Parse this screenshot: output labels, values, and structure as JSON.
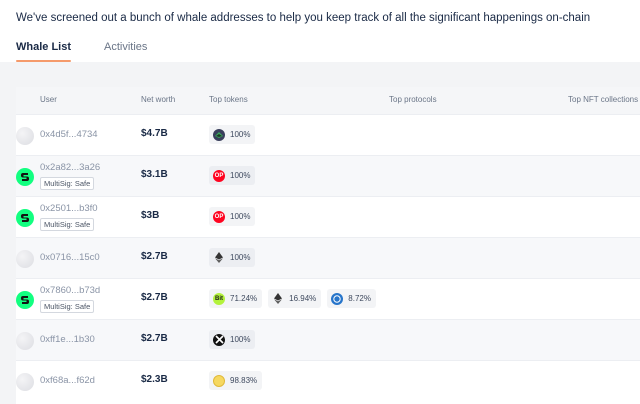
{
  "intro": "We've screened out a bunch of whale addresses to help you keep track of all the significant happenings on-chain",
  "tabs": [
    {
      "label": "Whale List",
      "active": true
    },
    {
      "label": "Activities",
      "active": false
    }
  ],
  "columns": {
    "user": "User",
    "net_worth": "Net worth",
    "top_tokens": "Top tokens",
    "top_protocols": "Top protocols",
    "top_nft": "Top NFT collections"
  },
  "rows": [
    {
      "address": "0x4d5f...4734",
      "badge": "",
      "avatar": "plain",
      "net_worth": "$4.7B",
      "tokens": [
        {
          "icon": "steth-icon",
          "pct": "100%"
        }
      ]
    },
    {
      "address": "0x2a82...3a26",
      "badge": "MultiSig: Safe",
      "avatar": "safe",
      "net_worth": "$3.1B",
      "tokens": [
        {
          "icon": "op-token-icon",
          "pct": "100%"
        }
      ]
    },
    {
      "address": "0x2501...b3f0",
      "badge": "MultiSig: Safe",
      "avatar": "safe",
      "net_worth": "$3B",
      "tokens": [
        {
          "icon": "op-token-icon",
          "pct": "100%"
        }
      ]
    },
    {
      "address": "0x0716...15c0",
      "badge": "",
      "avatar": "plain",
      "net_worth": "$2.7B",
      "tokens": [
        {
          "icon": "eth-icon",
          "pct": "100%"
        }
      ]
    },
    {
      "address": "0x7860...b73d",
      "badge": "MultiSig: Safe",
      "avatar": "safe",
      "net_worth": "$2.7B",
      "tokens": [
        {
          "icon": "bit-token-icon",
          "pct": "71.24%"
        },
        {
          "icon": "eth-icon",
          "pct": "16.94%"
        },
        {
          "icon": "usdc-icon",
          "pct": "8.72%"
        }
      ]
    },
    {
      "address": "0xff1e...1b30",
      "badge": "",
      "avatar": "plain",
      "net_worth": "$2.7B",
      "tokens": [
        {
          "icon": "cro-token-icon",
          "pct": "100%"
        }
      ]
    },
    {
      "address": "0xf68a...f62d",
      "badge": "",
      "avatar": "plain",
      "net_worth": "$2.3B",
      "tokens": [
        {
          "icon": "coin-token-icon",
          "pct": "98.83%"
        }
      ]
    }
  ],
  "colors": {
    "accent_underline": "#f59a6b",
    "safe_green": "#12ff80",
    "op_red": "#ff0420"
  }
}
